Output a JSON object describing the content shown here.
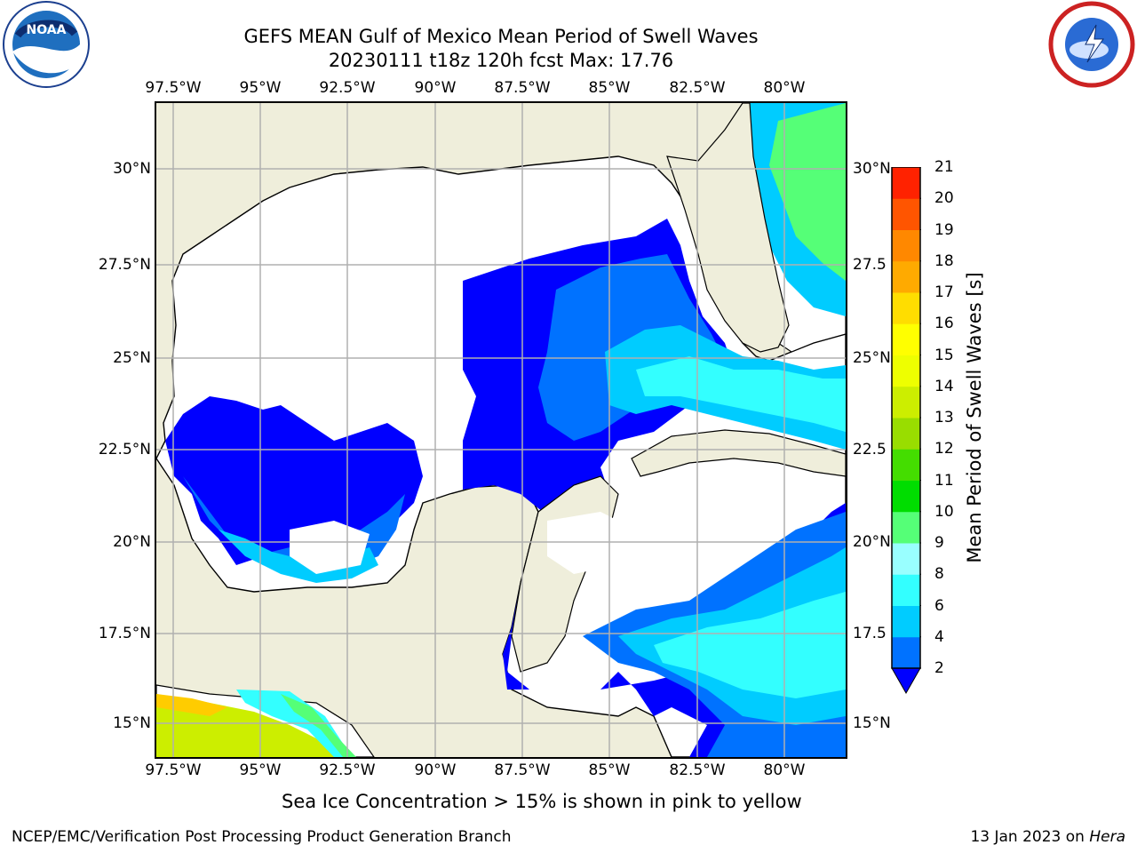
{
  "title": {
    "line1": "GEFS MEAN Gulf of Mexico Mean Period of Swell Waves",
    "line2": "20230111 t18z 120h fcst   Max: 17.76"
  },
  "map": {
    "lon_ticks": [
      "97.5°W",
      "95°W",
      "92.5°W",
      "90°W",
      "87.5°W",
      "85°W",
      "82.5°W",
      "80°W"
    ],
    "lat_ticks_left": [
      "30°N",
      "27.5°N",
      "25°N",
      "22.5°N",
      "20°N",
      "17.5°N",
      "15°N"
    ],
    "lat_ticks_right": [
      "30°N",
      "27.5",
      "25°N",
      "22.5",
      "20°N",
      "17.5",
      "15°N"
    ],
    "colors": {
      "land": "#efeedb",
      "ocean_white": "#ffffff",
      "grid": "#b0b0b0"
    }
  },
  "colorbar": {
    "label": "Mean Period of Swell Waves [s]",
    "ticks": [
      "2",
      "4",
      "6",
      "8",
      "9",
      "10",
      "11",
      "12",
      "13",
      "14",
      "15",
      "16",
      "17",
      "18",
      "19",
      "20",
      "21"
    ],
    "colors": [
      "#0072ff",
      "#00ccff",
      "#33ffff",
      "#99ffff",
      "#55ff77",
      "#00dd00",
      "#44dd00",
      "#99dd00",
      "#ccee00",
      "#eeff00",
      "#ffff00",
      "#ffdd00",
      "#ffaa00",
      "#ff8800",
      "#ff5500",
      "#ff2200"
    ],
    "under_color": "#0000ff"
  },
  "note": "Sea Ice Concentration > 15% is shown in pink to yellow",
  "footer": {
    "left": "NCEP/EMC/Verification Post Processing Product Generation Branch",
    "right_prefix": "13 Jan 2023 on ",
    "right_host": "Hera"
  },
  "logos": {
    "left": "noaa-logo",
    "right": "nws-logo"
  }
}
